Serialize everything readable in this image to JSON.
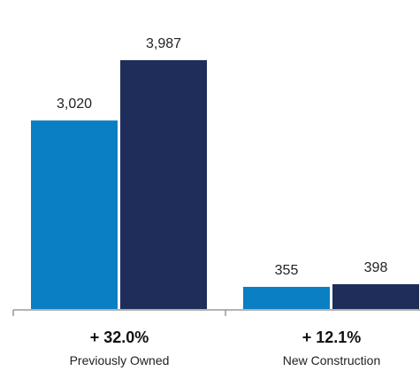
{
  "chart_data": {
    "type": "bar",
    "categories": [
      "Previously Owned",
      "New Construction"
    ],
    "changes": [
      "+ 32.0%",
      "+ 12.1%"
    ],
    "series": [
      {
        "values": [
          3020,
          355
        ],
        "value_labels": [
          "3,020",
          "355"
        ],
        "color": "#0a7fc4"
      },
      {
        "values": [
          3987,
          398
        ],
        "value_labels": [
          "3,987",
          "398"
        ],
        "color": "#1f2d5a"
      }
    ],
    "title": "",
    "xlabel": "",
    "ylabel": "",
    "ylim": [
      0,
      4500
    ],
    "grid": false,
    "legend": "none"
  }
}
